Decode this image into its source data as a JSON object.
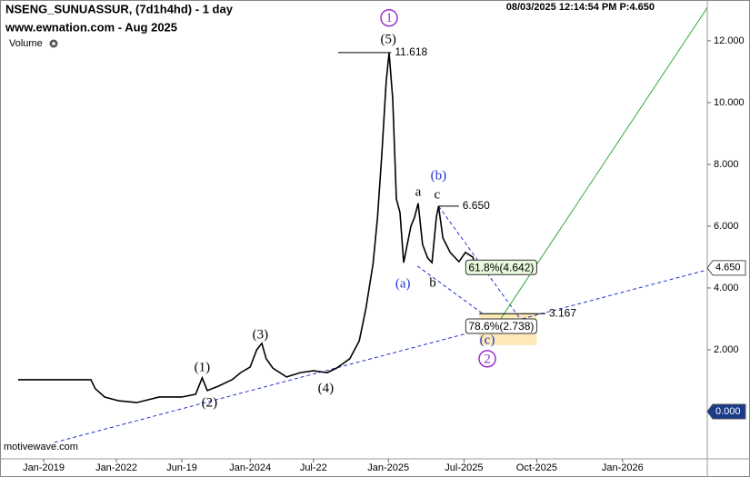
{
  "chart_data": {
    "type": "line",
    "title": "NSENG_SUNUASSUR, (7d1h4hd) - 1 day",
    "subtitle": "www.ewnation.com  - Aug 2025",
    "volume_label": "Volume",
    "timestamp": "08/03/2025 12:14:54 PM  P:4.650",
    "watermark": "motivewave.com",
    "xlim": [
      -0.6,
      9.125
    ],
    "ylim": [
      -1.53,
      13.32
    ],
    "xticks": [
      {
        "value": 0,
        "label": "Jan-2019"
      },
      {
        "value": 1,
        "label": "Jan-2022"
      },
      {
        "value": 1.9,
        "label": "Jun-19"
      },
      {
        "value": 2.84,
        "label": "Jan-2024"
      },
      {
        "value": 3.71,
        "label": "Jul-22"
      },
      {
        "value": 4.74,
        "label": "Jan-2025"
      },
      {
        "value": 5.78,
        "label": "Jul-2025"
      },
      {
        "value": 6.78,
        "label": "Oct-2025"
      },
      {
        "value": 7.96,
        "label": "Jan-2026"
      }
    ],
    "yticks": [
      {
        "value": 2,
        "label": "2.000"
      },
      {
        "value": 4,
        "label": "4.000"
      },
      {
        "value": 6,
        "label": "6.000"
      },
      {
        "value": 8,
        "label": "8.000"
      },
      {
        "value": 10,
        "label": "10.000"
      },
      {
        "value": 12,
        "label": "12.000"
      }
    ],
    "series": [
      {
        "name": "NSENG_SUNUASSUR",
        "color": "#000000",
        "x": [
          -0.35,
          0.65,
          0.71,
          0.84,
          1.03,
          1.28,
          1.59,
          1.9,
          2.09,
          2.18,
          2.25,
          2.4,
          2.59,
          2.71,
          2.84,
          2.93,
          3.0,
          3.06,
          3.15,
          3.34,
          3.53,
          3.71,
          3.9,
          4.03,
          4.21,
          4.34,
          4.43,
          4.53,
          4.59,
          4.65,
          4.71,
          4.75,
          4.8,
          4.85,
          4.9,
          4.95,
          5.0,
          5.05,
          5.1,
          5.15,
          5.21,
          5.28,
          5.34,
          5.4,
          5.43,
          5.49,
          5.59,
          5.71,
          5.8,
          5.9,
          5.96,
          6.03
        ],
        "values": [
          1.03,
          1.03,
          0.74,
          0.47,
          0.35,
          0.29,
          0.47,
          0.47,
          0.56,
          1.09,
          0.68,
          0.82,
          1.03,
          1.26,
          1.44,
          2.0,
          2.21,
          1.71,
          1.41,
          1.12,
          1.26,
          1.32,
          1.26,
          1.41,
          1.71,
          2.29,
          3.32,
          4.79,
          6.26,
          8.32,
          10.68,
          11.618,
          10.12,
          6.88,
          6.44,
          4.82,
          5.41,
          6.0,
          6.29,
          6.74,
          5.41,
          4.97,
          4.82,
          6.29,
          6.65,
          5.62,
          5.15,
          4.85,
          5.15,
          5.0,
          4.56,
          4.65
        ]
      }
    ],
    "trendlines": [
      {
        "color": "#2233cc",
        "x": [
          0.15,
          9.13
        ],
        "values": [
          -1.0,
          4.59
        ]
      },
      {
        "color": "#2233cc",
        "x": [
          5.43,
          6.59
        ],
        "values": [
          6.65,
          2.88
        ]
      },
      {
        "color": "#2233cc",
        "x": [
          5.14,
          6.03
        ],
        "values": [
          4.71,
          3.18
        ]
      },
      {
        "color": "#33aa33",
        "x": [
          6.21,
          9.13
        ],
        "values": [
          2.74,
          13.09
        ]
      }
    ],
    "target_zone": {
      "color": "#fde9b8",
      "x": [
        5.99,
        6.78
      ],
      "values": [
        3.167,
        2.15
      ]
    },
    "levels": [
      {
        "value": 11.618,
        "label": "11.618",
        "x": [
          4.05,
          4.78
        ]
      },
      {
        "value": 6.65,
        "label": "6.650",
        "x": [
          5.43,
          5.71
        ]
      },
      {
        "value": 4.642,
        "label": "61.8%(4.642)",
        "x": [
          6.11,
          6.78
        ],
        "boxed": true,
        "color": "#e8f8dc"
      },
      {
        "value": 3.167,
        "label": "3.167",
        "x": [
          5.99,
          6.9
        ]
      },
      {
        "value": 2.738,
        "label": "78.6%(2.738)",
        "x": [
          6.1,
          6.78
        ],
        "boxed": true,
        "color": "#ffffff"
      }
    ],
    "annotations": [
      {
        "text": "1",
        "x": 4.75,
        "y": 12.74,
        "color": "#9933cc",
        "circled": true
      },
      {
        "text": "(5)",
        "x": 4.74,
        "y": 12.06,
        "color": "#000000"
      },
      {
        "text": "(1)",
        "x": 2.18,
        "y": 1.44,
        "color": "#000000"
      },
      {
        "text": "(2)",
        "x": 2.28,
        "y": 0.29,
        "color": "#000000"
      },
      {
        "text": "(3)",
        "x": 2.98,
        "y": 2.5,
        "color": "#000000"
      },
      {
        "text": "(4)",
        "x": 3.88,
        "y": 0.76,
        "color": "#000000"
      },
      {
        "text": "(a)",
        "x": 4.94,
        "y": 4.15,
        "color": "#2233cc"
      },
      {
        "text": "(b)",
        "x": 5.43,
        "y": 7.65,
        "color": "#2233cc"
      },
      {
        "text": "a",
        "x": 5.15,
        "y": 7.12,
        "color": "#000000"
      },
      {
        "text": "b",
        "x": 5.35,
        "y": 4.18,
        "color": "#000000"
      },
      {
        "text": "c",
        "x": 5.41,
        "y": 7.03,
        "color": "#000000"
      },
      {
        "text": "(c)",
        "x": 6.1,
        "y": 2.32,
        "color": "#2233cc"
      },
      {
        "text": "2",
        "x": 6.1,
        "y": 1.71,
        "color": "#9933cc",
        "circled": true
      }
    ],
    "price_tags": [
      {
        "value": 4.65,
        "label": "4.650",
        "color": "#ffffff",
        "text_color": "#000000"
      },
      {
        "value": 0,
        "label": "0.000",
        "color": "#1a3a8a",
        "text_color": "#ffffff"
      }
    ]
  }
}
